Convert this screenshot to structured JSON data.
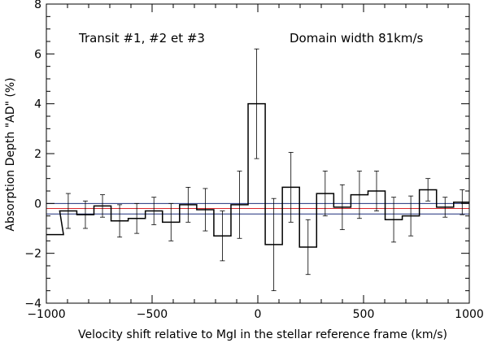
{
  "chart_data": {
    "type": "step",
    "xlabel": "Velocity shift relative to MgI in the stellar reference frame (km/s)",
    "ylabel": "Absorption Depth \"AD\" (%)",
    "xlim": [
      -1000,
      1000
    ],
    "ylim": [
      -4,
      8
    ],
    "xticks": [
      -1000,
      -500,
      0,
      500,
      1000
    ],
    "yticks": [
      -4,
      -2,
      0,
      2,
      4,
      6,
      8
    ],
    "annotations": [
      "Transit #1, #2 et #3",
      "Domain width 81km/s"
    ],
    "bin_width": 81,
    "bins": [
      {
        "x": -1000,
        "y": -1.25,
        "err": 0.0
      },
      {
        "x": -937,
        "y": -0.3,
        "err": 0.7
      },
      {
        "x": -856,
        "y": -0.45,
        "err": 0.55
      },
      {
        "x": -775,
        "y": -0.1,
        "err": 0.45
      },
      {
        "x": -694,
        "y": -0.7,
        "err": 0.65
      },
      {
        "x": -613,
        "y": -0.6,
        "err": 0.6
      },
      {
        "x": -532,
        "y": -0.3,
        "err": 0.55
      },
      {
        "x": -451,
        "y": -0.75,
        "err": 0.75
      },
      {
        "x": -370,
        "y": -0.05,
        "err": 0.7
      },
      {
        "x": -289,
        "y": -0.25,
        "err": 0.85
      },
      {
        "x": -208,
        "y": -1.3,
        "err": 1.0
      },
      {
        "x": -127,
        "y": -0.05,
        "err": 1.35
      },
      {
        "x": -46,
        "y": 4.0,
        "err": 2.2
      },
      {
        "x": 35,
        "y": -1.65,
        "err": 1.85
      },
      {
        "x": 116,
        "y": 0.65,
        "err": 1.4
      },
      {
        "x": 197,
        "y": -1.75,
        "err": 1.1
      },
      {
        "x": 278,
        "y": 0.4,
        "err": 0.9
      },
      {
        "x": 359,
        "y": -0.15,
        "err": 0.9
      },
      {
        "x": 440,
        "y": 0.35,
        "err": 0.95
      },
      {
        "x": 521,
        "y": 0.5,
        "err": 0.8
      },
      {
        "x": 602,
        "y": -0.65,
        "err": 0.9
      },
      {
        "x": 683,
        "y": -0.5,
        "err": 0.8
      },
      {
        "x": 764,
        "y": 0.55,
        "err": 0.45
      },
      {
        "x": 845,
        "y": -0.15,
        "err": 0.4
      },
      {
        "x": 926,
        "y": 0.05,
        "err": 0.5
      }
    ],
    "reference_lines": [
      {
        "y": 0.0,
        "color": "#1f2f7a"
      },
      {
        "y": -0.2,
        "color": "#d9262c"
      },
      {
        "y": -0.42,
        "color": "#1f2f7a"
      }
    ],
    "colors": {
      "histogram": "#000000",
      "errorbars": "#000000"
    }
  }
}
